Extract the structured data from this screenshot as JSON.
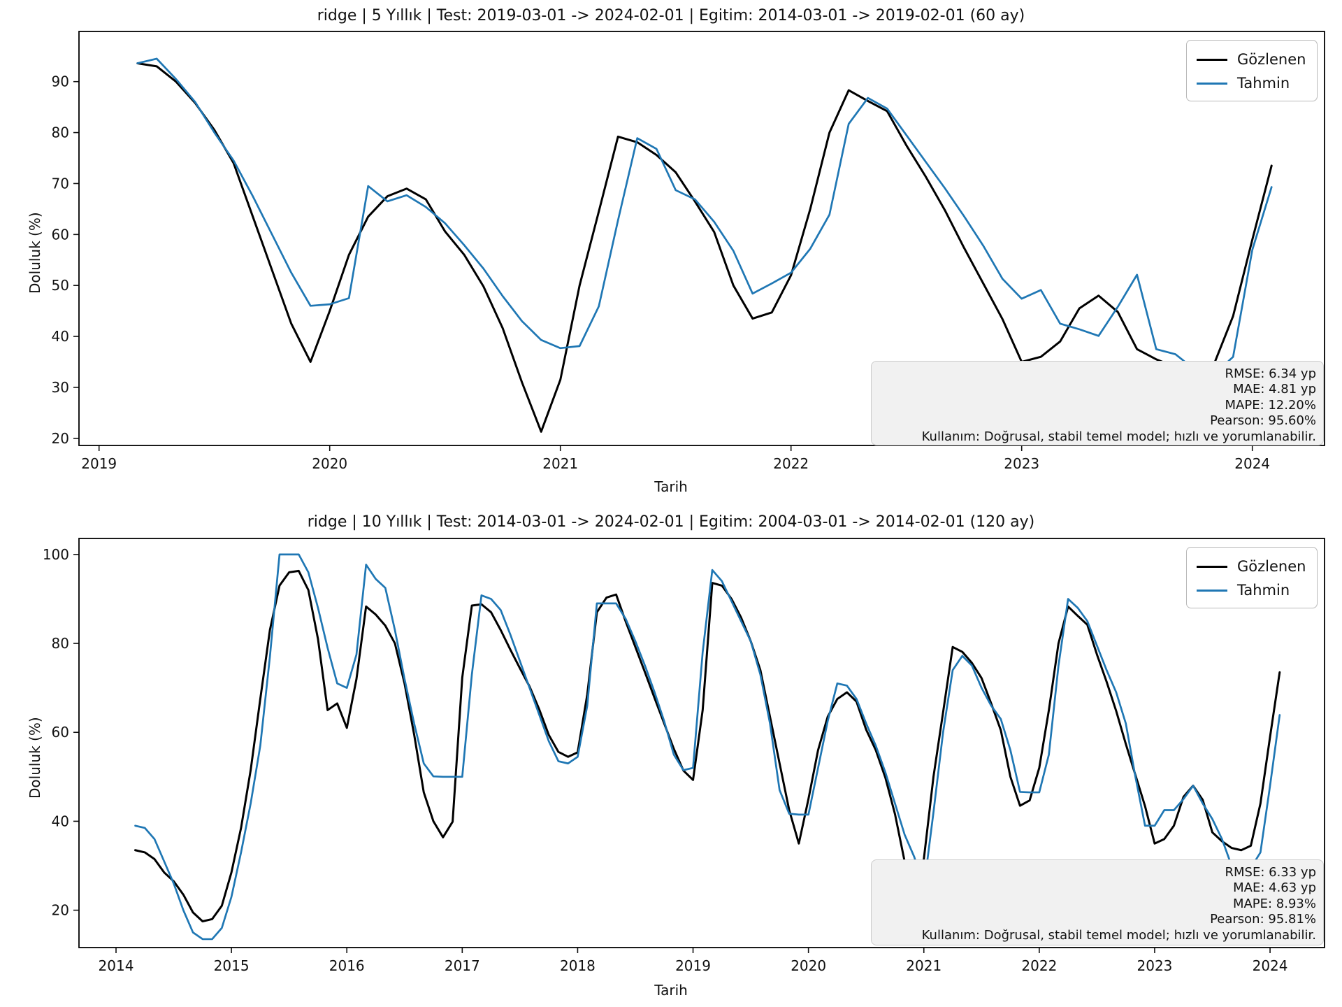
{
  "figure": {
    "background": "#ffffff",
    "observed_color": "#000000",
    "predicted_color": "#1f77b4"
  },
  "chart_data": [
    {
      "type": "line",
      "title": "ridge | 5 Yıllık | Test: 2019-03-01 -> 2024-02-01 | Egitim: 2014-03-01 -> 2019-02-01 (60 ay)",
      "xlabel": "Tarih",
      "ylabel": "Doluluk (%)",
      "x_start": "2019-03",
      "freq": "monthly",
      "x_start_frac": 2019.1667,
      "xlim": [
        2018.913,
        2024.313
      ],
      "ylim": [
        18.6,
        99.84
      ],
      "x_ticks": [
        2019,
        2020,
        2021,
        2022,
        2023,
        2024
      ],
      "y_ticks": [
        20,
        30,
        40,
        50,
        60,
        70,
        80,
        90
      ],
      "grid": false,
      "legend_position": "upper right",
      "stats": [
        "RMSE: 6.34 yp",
        "MAE: 4.81 yp",
        "MAPE: 12.20%",
        "Pearson: 95.60%",
        "Kullanım: Doğrusal, stabil temel model; hızlı ve yorumlanabilir."
      ],
      "series": [
        {
          "name": "Gözlenen",
          "color": "#000000",
          "values": [
            93.6,
            93.0,
            90.0,
            85.8,
            80.5,
            74.0,
            63.5,
            53.0,
            42.5,
            35.0,
            45.0,
            56.0,
            63.5,
            67.5,
            69.0,
            66.9,
            60.6,
            56.0,
            49.8,
            41.6,
            31.0,
            21.3,
            31.5,
            50.0,
            64.5,
            79.2,
            78.1,
            75.6,
            72.2,
            66.5,
            60.5,
            50.0,
            43.5,
            44.7,
            52.0,
            65.0,
            80.0,
            88.3,
            86.2,
            84.2,
            77.5,
            71.4,
            64.8,
            57.4,
            50.4,
            43.4,
            35.0,
            36.0,
            39.0,
            45.5,
            48.0,
            44.8,
            37.5,
            35.5,
            34.0,
            33.5,
            34.5,
            44.0,
            59.0,
            73.5
          ]
        },
        {
          "name": "Tahmin",
          "color": "#1f77b4",
          "values": [
            93.6,
            94.5,
            90.5,
            86.0,
            80.0,
            74.5,
            67.5,
            60.0,
            52.5,
            46.0,
            46.3,
            47.5,
            69.5,
            66.5,
            67.7,
            65.4,
            62.2,
            57.9,
            53.3,
            47.9,
            43.0,
            39.3,
            37.7,
            38.1,
            45.9,
            62.8,
            78.9,
            76.8,
            68.7,
            66.9,
            62.5,
            56.8,
            48.4,
            50.4,
            52.5,
            57.2,
            63.9,
            81.7,
            86.8,
            84.7,
            79.5,
            74.3,
            69.1,
            63.6,
            57.8,
            51.3,
            47.4,
            49.1,
            42.5,
            41.4,
            40.1,
            45.8,
            52.1,
            37.5,
            36.5,
            33.5,
            32.5,
            36.0,
            57.0,
            69.3
          ]
        }
      ]
    },
    {
      "type": "line",
      "title": "ridge | 10 Yıllık | Test: 2014-03-01 -> 2024-02-01 | Egitim: 2004-03-01 -> 2014-02-01 (120 ay)",
      "xlabel": "Tarih",
      "ylabel": "Doluluk (%)",
      "x_start": "2014-03",
      "freq": "monthly",
      "x_start_frac": 2014.1667,
      "xlim": [
        2013.679,
        2024.472
      ],
      "ylim": [
        11.6,
        103.6
      ],
      "x_ticks": [
        2014,
        2015,
        2016,
        2017,
        2018,
        2019,
        2020,
        2021,
        2022,
        2023,
        2024
      ],
      "y_ticks": [
        20,
        40,
        60,
        80,
        100
      ],
      "grid": false,
      "legend_position": "upper right",
      "stats": [
        "RMSE: 6.33 yp",
        "MAE: 4.63 yp",
        "MAPE: 8.93%",
        "Pearson: 95.81%",
        "Kullanım: Doğrusal, stabil temel model; hızlı ve yorumlanabilir."
      ],
      "series": [
        {
          "name": "Gözlenen",
          "color": "#000000",
          "values": [
            33.5,
            33.0,
            31.5,
            28.5,
            26.5,
            23.5,
            19.5,
            17.5,
            18.0,
            21.0,
            28.5,
            38.5,
            51.5,
            67.5,
            83.0,
            93.0,
            96.0,
            96.3,
            92.0,
            81.0,
            65.0,
            66.5,
            61.0,
            72.0,
            88.3,
            86.5,
            84.0,
            80.0,
            71.0,
            59.5,
            46.5,
            40.0,
            36.4,
            39.9,
            72.3,
            88.5,
            88.8,
            87.0,
            83.0,
            78.6,
            74.4,
            70.3,
            65.2,
            59.4,
            55.6,
            54.5,
            55.5,
            68.5,
            87.0,
            90.3,
            91.0,
            84.9,
            79.2,
            73.5,
            67.7,
            62.0,
            56.3,
            51.4,
            49.3,
            65.0,
            93.6,
            93.0,
            90.0,
            85.8,
            80.5,
            74.0,
            63.5,
            53.0,
            42.5,
            35.0,
            45.0,
            56.0,
            63.5,
            67.5,
            69.0,
            66.9,
            60.6,
            56.0,
            49.8,
            41.6,
            31.0,
            21.3,
            31.5,
            50.0,
            64.5,
            79.2,
            78.1,
            75.6,
            72.2,
            66.5,
            60.5,
            50.0,
            43.5,
            44.7,
            52.0,
            65.0,
            80.0,
            88.3,
            86.2,
            84.2,
            77.5,
            71.4,
            64.8,
            57.4,
            50.4,
            43.4,
            35.0,
            36.0,
            39.0,
            45.5,
            48.0,
            44.8,
            37.5,
            35.5,
            34.0,
            33.5,
            34.5,
            44.0,
            59.0,
            73.5
          ]
        },
        {
          "name": "Tahmin",
          "color": "#1f77b4",
          "values": [
            39.0,
            38.5,
            36.0,
            31.0,
            26.0,
            20.0,
            15.0,
            13.5,
            13.5,
            16.0,
            23.0,
            33.0,
            44.0,
            57.0,
            77.0,
            100.0,
            100.0,
            100.0,
            96.0,
            88.0,
            79.0,
            71.0,
            70.0,
            77.5,
            97.7,
            94.5,
            92.5,
            83.0,
            72.0,
            62.0,
            53.0,
            50.1,
            50.0,
            50.0,
            50.0,
            73.0,
            90.8,
            90.0,
            87.5,
            82.0,
            76.0,
            70.0,
            64.0,
            58.0,
            53.5,
            53.0,
            54.5,
            66.0,
            89.0,
            89.0,
            89.0,
            85.5,
            80.5,
            75.0,
            69.0,
            62.5,
            55.0,
            51.5,
            52.0,
            78.0,
            96.5,
            94.0,
            89.5,
            85.0,
            80.5,
            73.0,
            62.0,
            47.0,
            41.7,
            41.5,
            41.5,
            52.0,
            62.5,
            71.0,
            70.5,
            67.5,
            62.0,
            57.0,
            51.0,
            44.0,
            37.0,
            32.0,
            25.0,
            42.0,
            60.0,
            74.0,
            77.2,
            75.0,
            70.0,
            66.0,
            63.0,
            56.0,
            46.6,
            46.5,
            46.5,
            55.0,
            75.0,
            90.0,
            88.0,
            85.0,
            79.5,
            74.0,
            69.0,
            62.0,
            50.0,
            39.0,
            39.0,
            42.5,
            42.5,
            45.0,
            48.0,
            44.0,
            40.5,
            36.0,
            30.0,
            29.0,
            29.5,
            33.0,
            48.0,
            63.9
          ]
        }
      ]
    }
  ]
}
